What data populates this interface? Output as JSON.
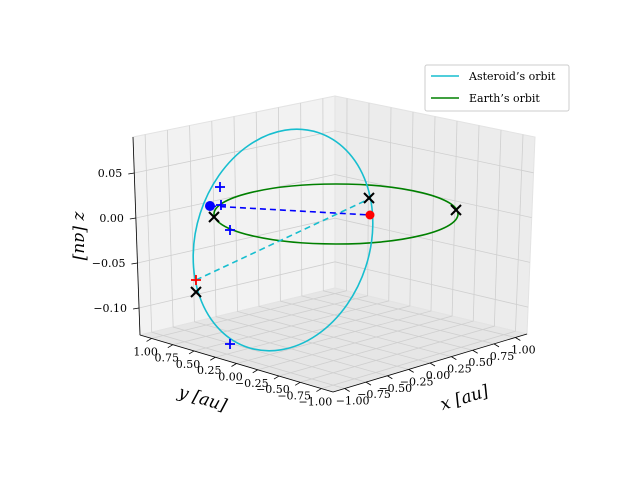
{
  "chart_data": {
    "type": "line",
    "projection": "3d",
    "xlabel": "x [au]",
    "ylabel": "y [au]",
    "zlabel": "z [au]",
    "xlim": [
      -1.0,
      1.0
    ],
    "ylim": [
      -1.0,
      1.0
    ],
    "zlim": [
      -0.13,
      0.09
    ],
    "x_ticks": [
      "−1.00",
      "−0.75",
      "−0.50",
      "−0.25",
      "0.00",
      "0.25",
      "0.50",
      "0.75",
      "1.00"
    ],
    "y_ticks": [
      "1.00",
      "0.75",
      "0.50",
      "0.25",
      "0.00",
      "−0.25",
      "−0.50",
      "−0.75",
      "−1.00"
    ],
    "z_ticks": [
      "0.05",
      "0.00",
      "−0.05",
      "−0.10"
    ],
    "grid": true,
    "legend_position": "top-right",
    "series": [
      {
        "name": "Asteroid’s orbit",
        "color": "#17becf",
        "kind": "ellipse",
        "semi_major_axis_au": 0.9,
        "inclination_deg": 5
      },
      {
        "name": "Earth’s orbit",
        "color": "#008000",
        "kind": "circle",
        "radius_au": 1.0
      }
    ],
    "markers": {
      "sun_color": "#ff0000",
      "asteroid_color": "#0000ff",
      "plus_color": "#0000ff",
      "cross_color": "#000000",
      "node_plus_color": "#ff0000",
      "node_line_color": "#17becf",
      "position_line_color": "#0000ff"
    }
  }
}
